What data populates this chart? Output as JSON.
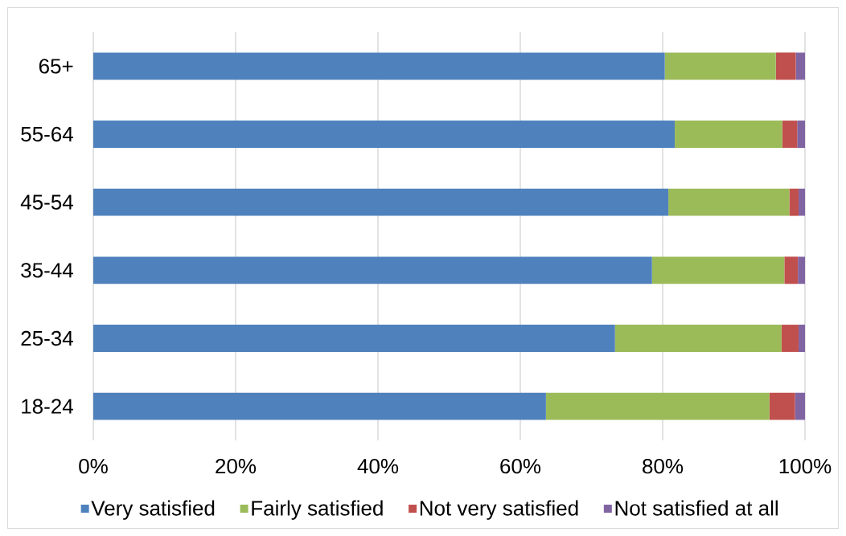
{
  "chart_data": {
    "type": "bar",
    "orientation": "horizontal",
    "stacked": true,
    "categories": [
      "65+",
      "55-64",
      "45-54",
      "35-44",
      "25-34",
      "18-24"
    ],
    "series": [
      {
        "name": "Very satisfied",
        "color": "#4f81bd",
        "values": [
          80.3,
          81.7,
          80.8,
          78.5,
          73.3,
          63.6
        ]
      },
      {
        "name": "Fairly satisfied",
        "color": "#9bbb59",
        "values": [
          15.6,
          15.1,
          17.0,
          18.6,
          23.4,
          31.4
        ]
      },
      {
        "name": "Not very satisfied",
        "color": "#c0504d",
        "values": [
          2.8,
          2.1,
          1.3,
          1.9,
          2.4,
          3.6
        ]
      },
      {
        "name": "Not satisfied at all",
        "color": "#8064a2",
        "values": [
          1.3,
          1.1,
          0.9,
          1.0,
          0.9,
          1.4
        ]
      }
    ],
    "xlim": [
      0,
      100
    ],
    "xticks": [
      {
        "value": 0,
        "label": "0%"
      },
      {
        "value": 20,
        "label": "20%"
      },
      {
        "value": 40,
        "label": "40%"
      },
      {
        "value": 60,
        "label": "60%"
      },
      {
        "value": 80,
        "label": "80%"
      },
      {
        "value": 100,
        "label": "100%"
      }
    ],
    "grid": "x",
    "legend": "bottom"
  }
}
